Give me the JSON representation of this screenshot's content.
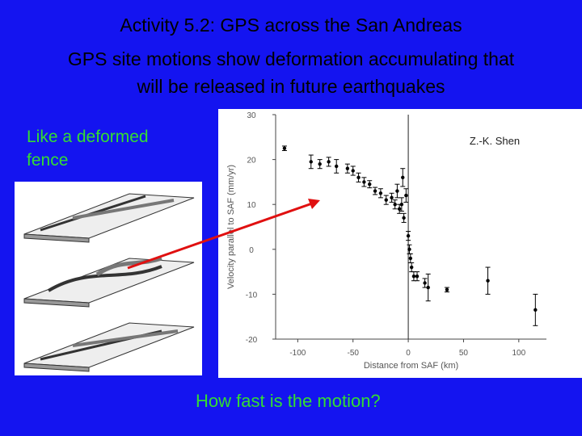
{
  "slide": {
    "title": "Activity 5.2: GPS across the San Andreas",
    "subtitle_line1": "GPS site motions show deformation accumulating that",
    "subtitle_line2": "will be released in future earthquakes",
    "side_note_line1": "Like a deformed",
    "side_note_line2": "fence",
    "question": "How fast is the motion?"
  },
  "chart_data": {
    "type": "scatter",
    "annotation": "Z.-K. Shen",
    "x_label": "Distance from SAF (km)",
    "y_label": "Velocity parallel to SAF (mm/yr)",
    "xlim": [
      -120,
      125
    ],
    "ylim": [
      -20,
      30
    ],
    "xticks": [
      -100,
      -50,
      0,
      50,
      100
    ],
    "yticks": [
      -20,
      -10,
      0,
      10,
      20,
      30
    ],
    "color": "#000000",
    "series": [
      {
        "x": [
          -112,
          -88,
          -80,
          -72,
          -65,
          -55,
          -50,
          -45,
          -40,
          -35,
          -30,
          -25,
          -20,
          -15,
          -12,
          -10,
          -8,
          -6,
          -5,
          -4,
          -2,
          0,
          1,
          2,
          3,
          5,
          8,
          15,
          18,
          35,
          72,
          115
        ],
        "values": [
          22.5,
          19.5,
          19,
          19.5,
          18.5,
          18,
          17.5,
          16,
          15,
          14.5,
          13,
          12.5,
          11,
          11.5,
          10,
          13,
          9,
          10,
          16,
          7,
          12,
          3,
          0,
          -2,
          -4,
          -6,
          -6,
          -7.5,
          -8.5,
          -9,
          -7,
          -13.5
        ],
        "errors": [
          0.5,
          1.5,
          1,
          1,
          1.5,
          1,
          1,
          1,
          1,
          0.8,
          0.8,
          1,
          1,
          1,
          1,
          1.5,
          1,
          1.5,
          2,
          1,
          1.5,
          1,
          1,
          1,
          1,
          1,
          1,
          1,
          3,
          0.5,
          3,
          3.5
        ]
      }
    ]
  }
}
